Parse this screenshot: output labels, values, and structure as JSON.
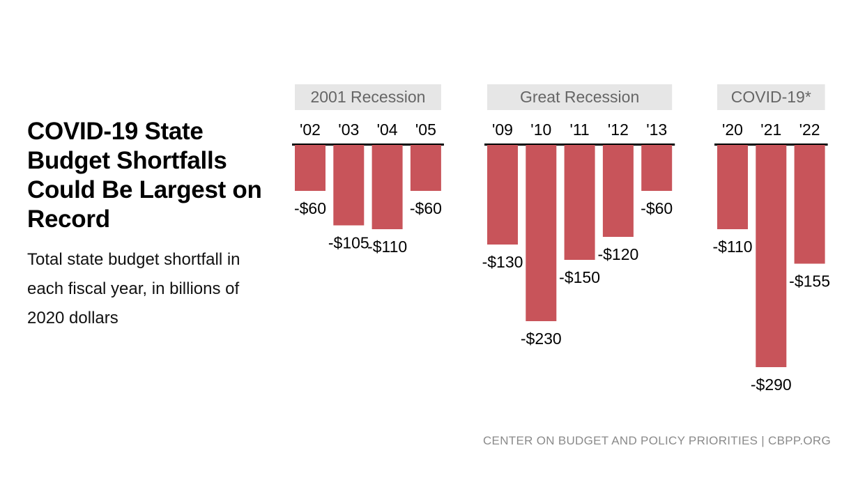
{
  "title": "COVID-19 State Budget Shortfalls Could Be Largest on Record",
  "subtitle": "Total state budget shortfall in each fiscal year, in billions of 2020 dollars",
  "footer": "CENTER ON BUDGET AND POLICY PRIORITIES | CBPP.ORG",
  "colors": {
    "bar": "#c8545a",
    "group_header_bg": "#e6e6e6",
    "axis": "#000000"
  },
  "chart_data": {
    "type": "bar",
    "title": "COVID-19 State Budget Shortfalls Could Be Largest on Record",
    "ylabel": "Total state budget shortfall, billions of 2020 dollars",
    "xlabel": "",
    "ylim": [
      -300,
      0
    ],
    "grid": false,
    "groups": [
      {
        "name": "2001 Recession",
        "categories": [
          "'02",
          "'03",
          "'04",
          "'05"
        ],
        "values": [
          -60,
          -105,
          -110,
          -60
        ],
        "labels": [
          "-$60",
          "-$105",
          "-$110",
          "-$60"
        ]
      },
      {
        "name": "Great Recession",
        "categories": [
          "'09",
          "'10",
          "'11",
          "'12",
          "'13"
        ],
        "values": [
          -130,
          -230,
          -150,
          -120,
          -60
        ],
        "labels": [
          "-$130",
          "-$230",
          "-$150",
          "-$120",
          "-$60"
        ]
      },
      {
        "name": "COVID-19*",
        "categories": [
          "'20",
          "'21",
          "'22"
        ],
        "values": [
          -110,
          -290,
          -155
        ],
        "labels": [
          "-$110",
          "-$290",
          "-$155"
        ]
      }
    ]
  }
}
